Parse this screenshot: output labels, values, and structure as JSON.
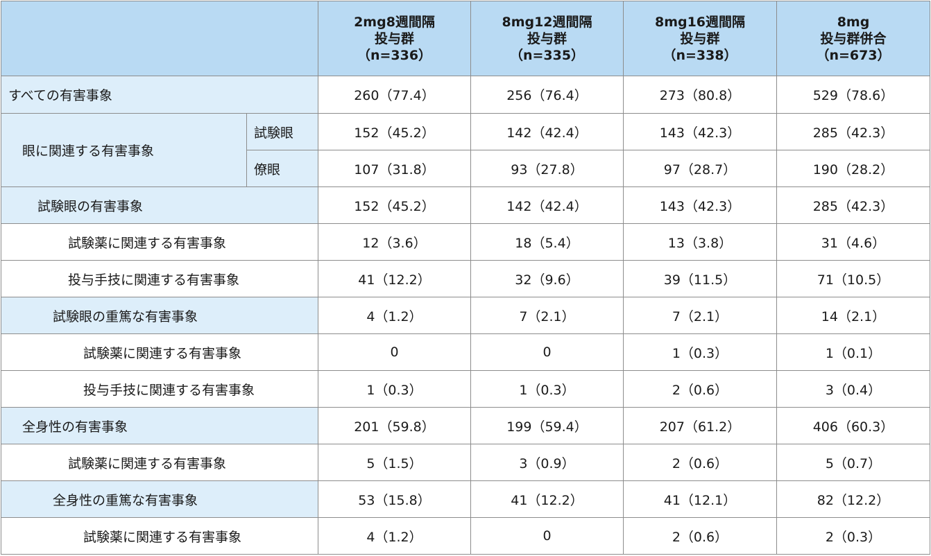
{
  "header": {
    "columns": [
      {
        "lines": [
          "2mg8週間隔",
          "投与群",
          "（n=336）"
        ]
      },
      {
        "lines": [
          "8mg12週間隔",
          "投与群",
          "（n=335）"
        ]
      },
      {
        "lines": [
          "8mg16週間隔",
          "投与群",
          "（n=338）"
        ]
      },
      {
        "lines": [
          "8mg",
          "投与群併合",
          "（n=673）"
        ]
      }
    ]
  },
  "rows": [
    {
      "label": "すべての有害事象",
      "values": [
        "260（77.4）",
        "256（76.4）",
        "273（80.8）",
        "529（78.6）"
      ]
    },
    {
      "label": "眼に関連する有害事象",
      "sublabel": "試験眼",
      "values": [
        "152（45.2）",
        "142（42.4）",
        "143（42.3）",
        "285（42.3）"
      ]
    },
    {
      "sublabel": "僚眼",
      "values": [
        "107（31.8）",
        "93（27.8）",
        "97（28.7）",
        "190（28.2）"
      ]
    },
    {
      "label": "試験眼の有害事象",
      "values": [
        "152（45.2）",
        "142（42.4）",
        "143（42.3）",
        "285（42.3）"
      ]
    },
    {
      "label": "試験薬に関連する有害事象",
      "values": [
        "12（3.6）",
        "18（5.4）",
        "13（3.8）",
        "31（4.6）"
      ]
    },
    {
      "label": "投与手技に関連する有害事象",
      "values": [
        "41（12.2）",
        "32（9.6）",
        "39（11.5）",
        "71（10.5）"
      ]
    },
    {
      "label": "試験眼の重篤な有害事象",
      "values": [
        "4（1.2）",
        "7（2.1）",
        "7（2.1）",
        "14（2.1）"
      ]
    },
    {
      "label": "試験薬に関連する有害事象",
      "values": [
        "0",
        "0",
        "1（0.3）",
        "1（0.1）"
      ]
    },
    {
      "label": "投与手技に関連する有害事象",
      "values": [
        "1（0.3）",
        "1（0.3）",
        "2（0.6）",
        "3（0.4）"
      ]
    },
    {
      "label": "全身性の有害事象",
      "values": [
        "201（59.8）",
        "199（59.4）",
        "207（61.2）",
        "406（60.3）"
      ]
    },
    {
      "label": "試験薬に関連する有害事象",
      "values": [
        "5（1.5）",
        "3（0.9）",
        "2（0.6）",
        "5（0.7）"
      ]
    },
    {
      "label": "全身性の重篤な有害事象",
      "values": [
        "53（15.8）",
        "41（12.2）",
        "41（12.1）",
        "82（12.2）"
      ]
    },
    {
      "label": "試験薬に関連する有害事象",
      "values": [
        "4（1.2）",
        "0",
        "2（0.6）",
        "2（0.3）"
      ]
    }
  ]
}
